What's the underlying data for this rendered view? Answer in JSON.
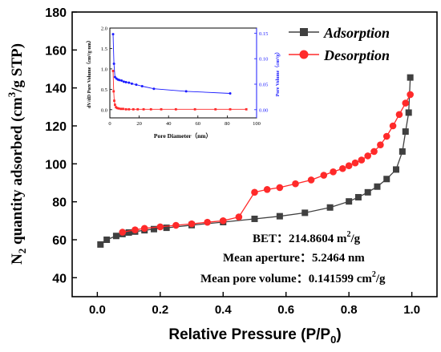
{
  "chart_data": [
    {
      "id": "main",
      "type": "line",
      "xlabel_main": "Relative Pressure (P/P",
      "xlabel_sub": "0",
      "xlabel_end": ")",
      "ylabel_prefix": "N",
      "ylabel_sub": "2",
      "ylabel_mid": " quantity adsorbed (cm",
      "ylabel_sup": "3",
      "ylabel_end": "/g STP)",
      "xlim": [
        -0.08,
        1.08
      ],
      "ylim": [
        30,
        180
      ],
      "xticks": [
        "0.0",
        "0.2",
        "0.4",
        "0.6",
        "0.8",
        "1.0"
      ],
      "yticks": [
        "40",
        "60",
        "80",
        "100",
        "120",
        "140",
        "160",
        "180"
      ],
      "legend_position": "top-right",
      "series": [
        {
          "name": "Adsorption",
          "color": "#404040",
          "marker": "square",
          "x": [
            0.01,
            0.03,
            0.06,
            0.08,
            0.1,
            0.12,
            0.15,
            0.18,
            0.22,
            0.3,
            0.4,
            0.5,
            0.58,
            0.66,
            0.74,
            0.8,
            0.83,
            0.86,
            0.89,
            0.92,
            0.95,
            0.97,
            0.98,
            0.99,
            0.995
          ],
          "y": [
            57.5,
            60,
            62,
            63,
            63.8,
            64.3,
            65,
            65.6,
            66.3,
            67.7,
            69.3,
            71,
            72.4,
            74.2,
            77,
            80.2,
            82.4,
            85,
            88,
            92,
            97,
            106.5,
            117,
            127,
            145.5
          ]
        },
        {
          "name": "Desorption",
          "color": "#ff2a2a",
          "marker": "circle",
          "x": [
            0.995,
            0.98,
            0.96,
            0.94,
            0.92,
            0.9,
            0.88,
            0.86,
            0.84,
            0.82,
            0.8,
            0.78,
            0.75,
            0.72,
            0.68,
            0.63,
            0.58,
            0.54,
            0.5,
            0.45,
            0.4,
            0.35,
            0.3,
            0.25,
            0.2,
            0.15,
            0.12,
            0.08
          ],
          "y": [
            136.5,
            132,
            126,
            120,
            114.5,
            110,
            106.5,
            104.2,
            102,
            100.5,
            99,
            97.5,
            95.8,
            94,
            91.5,
            89.5,
            87.5,
            86.5,
            85,
            72,
            70,
            69.2,
            68.4,
            67.6,
            66.8,
            66,
            65.2,
            64
          ]
        }
      ]
    },
    {
      "id": "inset",
      "type": "line",
      "xlabel": "Pore Diameter（nm）",
      "ylabel_left": "dV/dD Pore Volume（cm³/g·nm）",
      "ylabel_right": "Pore Volume（cm³/g）",
      "xlim": [
        0,
        100
      ],
      "ylim_left": [
        -0.2,
        2.0
      ],
      "ylim_right": [
        -0.016,
        0.16
      ],
      "xticks": [
        "0",
        "20",
        "40",
        "60",
        "80",
        "100"
      ],
      "yticks_left": [
        "0.0",
        "0.5",
        "1.0",
        "1.5",
        "2.0"
      ],
      "yticks_right": [
        "0.00",
        "0.05",
        "0.10",
        "0.15"
      ],
      "series": [
        {
          "axis": "left",
          "color": "#ff2a2a",
          "marker": "square",
          "x": [
            2.2,
            2.6,
            3.0,
            3.5,
            4.2,
            5,
            6,
            7.5,
            9,
            11,
            13,
            16,
            19,
            23,
            28,
            35,
            45,
            58,
            72,
            82,
            93
          ],
          "y": [
            0.95,
            0.45,
            0.22,
            0.12,
            0.06,
            0.04,
            0.03,
            0.02,
            0.02,
            0.01,
            0.01,
            0.01,
            0.01,
            0.01,
            0.01,
            0.01,
            0.01,
            0.01,
            0.01,
            0.01,
            0.01
          ]
        },
        {
          "axis": "right",
          "color": "#1a1aff",
          "marker": "circle",
          "x": [
            2.2,
            2.8,
            3.5,
            4.5,
            5.5,
            6.5,
            8,
            9.5,
            11,
            13,
            15,
            18,
            22,
            30,
            52,
            82
          ],
          "y": [
            0.148,
            0.09,
            0.064,
            0.061,
            0.059,
            0.058,
            0.057,
            0.055,
            0.054,
            0.053,
            0.051,
            0.049,
            0.046,
            0.041,
            0.036,
            0.032
          ]
        }
      ]
    }
  ],
  "annotations": {
    "bet_label": "BET：214.8604 m",
    "bet_sup": "2",
    "bet_unit": "/g",
    "aperture": "Mean aperture：5.2464 nm",
    "pore_volume_label": "Mean pore volume：0.141599 cm",
    "pore_volume_sup": "2",
    "pore_volume_unit": "/g"
  }
}
